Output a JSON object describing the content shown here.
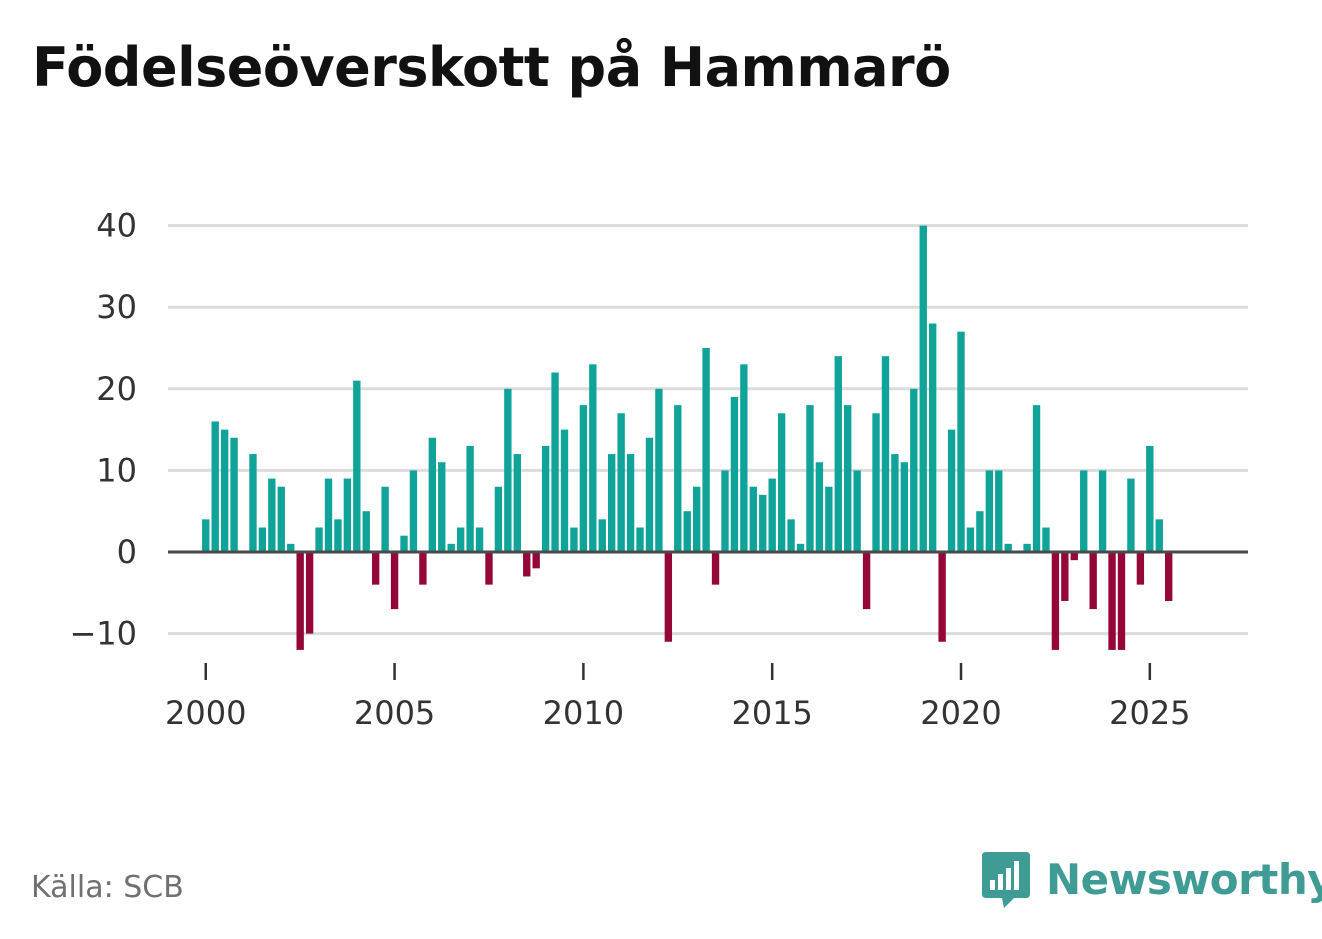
{
  "chart_data": {
    "type": "bar",
    "title": "Födelseöverskott på Hammarö",
    "xlabel": "",
    "ylabel": "",
    "ylim": [
      -14,
      40
    ],
    "yticks": [
      -10,
      0,
      10,
      20,
      30,
      40
    ],
    "ytick_labels": [
      "−10",
      "0",
      "10",
      "20",
      "30",
      "40"
    ],
    "xticks": [
      2000,
      2005,
      2010,
      2015,
      2020,
      2025
    ],
    "xtick_labels": [
      "2000",
      "2005",
      "2010",
      "2015",
      "2020",
      "2025"
    ],
    "xlim": [
      1999.0,
      2027.6
    ],
    "start": 2000.0,
    "step": 0.25,
    "grid": true,
    "values": [
      4,
      16,
      15,
      14,
      0,
      12,
      3,
      9,
      8,
      1,
      -12,
      -10,
      3,
      9,
      4,
      9,
      21,
      5,
      -4,
      8,
      -7,
      2,
      10,
      -4,
      14,
      11,
      1,
      3,
      13,
      3,
      -4,
      8,
      20,
      12,
      -3,
      -2,
      13,
      22,
      15,
      3,
      18,
      23,
      4,
      12,
      17,
      12,
      3,
      14,
      20,
      -11,
      18,
      5,
      8,
      25,
      -4,
      10,
      19,
      23,
      8,
      7,
      9,
      17,
      4,
      1,
      18,
      11,
      8,
      24,
      18,
      10,
      -7,
      17,
      24,
      12,
      11,
      20,
      40,
      28,
      -11,
      15,
      27,
      3,
      5,
      10,
      10,
      1,
      0,
      1,
      18,
      3,
      -12,
      -6,
      -1,
      10,
      -7,
      10,
      -12,
      -12,
      9,
      -4,
      13,
      4,
      -6
    ],
    "colors": {
      "positive": "#0fa39a",
      "negative": "#950639"
    }
  },
  "source": "Källa: SCB",
  "brand": {
    "name": "Newsworthy",
    "icon": "newsworthy-logo-icon",
    "color": "#3f9c95"
  }
}
